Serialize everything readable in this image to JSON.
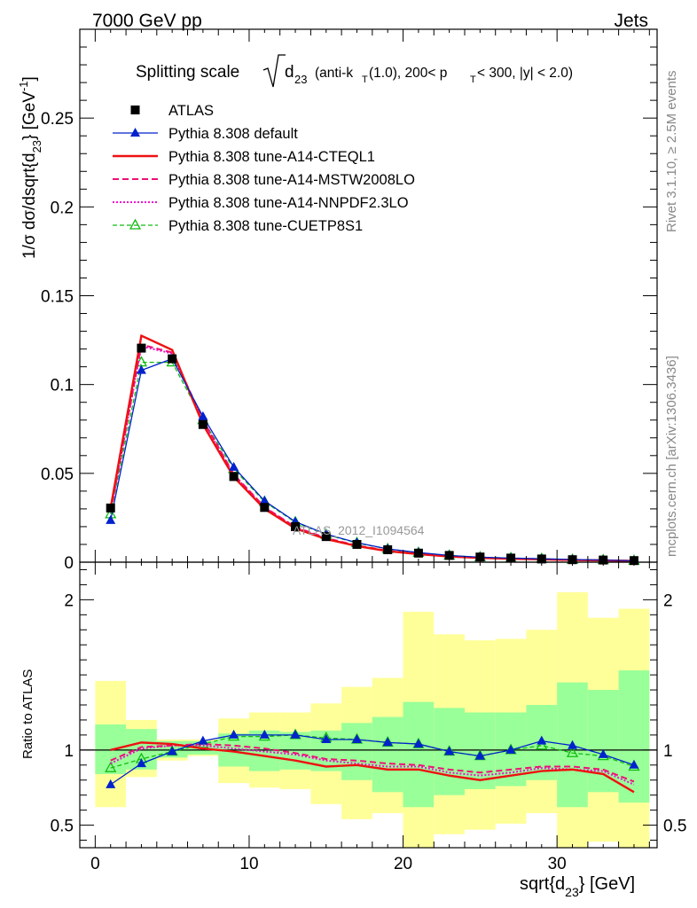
{
  "header": {
    "left": "7000 GeV pp",
    "right": "Jets"
  },
  "side_labels": {
    "rivet": "Rivet 3.1.10, ≥ 2.5M events",
    "mcplots": "mcplots.cern.ch [arXiv:1306.3436]"
  },
  "watermark": "ATLAS_2012_I1094564",
  "title": {
    "prefix": "Splitting scale",
    "radicand": "d",
    "radicand_sub": "23",
    "detail": "(anti-k",
    "detail_sub1": "T",
    "detail_mid": "(1.0), 200< p",
    "detail_sub2": "T",
    "detail_end": " < 300, |y| < 2.0)"
  },
  "y_main": {
    "label": "1/σ dσ/dsqrt{d",
    "label_sub": "23",
    "label_end": "} [GeV",
    "label_sup": "-1",
    "label_close": "]"
  },
  "y_ratio": {
    "label": "Ratio to ATLAS"
  },
  "x_axis": {
    "label": "sqrt{d",
    "label_sub": "23",
    "label_end": "} [GeV]"
  },
  "chart_data": [
    {
      "type": "line",
      "panel": "main",
      "xlim": [
        -1,
        36.5
      ],
      "ylim": [
        0,
        0.3
      ],
      "x_ticks": [
        0,
        10,
        20,
        30
      ],
      "y_ticks": [
        "0",
        "0.05",
        "0.1",
        "0.15",
        "0.2",
        "0.25"
      ],
      "y_tick_values": [
        0,
        0.05,
        0.1,
        0.15,
        0.2,
        0.25
      ],
      "x": [
        1,
        3,
        5,
        7,
        9,
        11,
        13,
        15,
        17,
        19,
        21,
        23,
        25,
        27,
        29,
        31,
        33,
        35
      ],
      "legend_position": "top-left",
      "series": [
        {
          "name": "ATLAS",
          "color": "#000000",
          "marker": "square",
          "values": [
            0.0305,
            0.1205,
            0.1145,
            0.0775,
            0.0482,
            0.0308,
            0.02,
            0.0144,
            0.01,
            0.007,
            0.0051,
            0.0038,
            0.0029,
            0.0023,
            0.0018,
            0.0014,
            0.0012,
            0.0009
          ]
        },
        {
          "name": "Pythia 8.308 default",
          "color": "#0022cc",
          "marker": "triangle",
          "values": [
            0.0235,
            0.108,
            0.1145,
            0.082,
            0.0535,
            0.0345,
            0.0228,
            0.0158,
            0.011,
            0.0075,
            0.0054,
            0.0038,
            0.0028,
            0.0023,
            0.0019,
            0.0015,
            0.0012,
            0.0008
          ]
        },
        {
          "name": "Pythia 8.308 tune-A14-CTEQL1",
          "color": "#ee1111",
          "dash": "",
          "values": [
            0.0305,
            0.1275,
            0.1195,
            0.0775,
            0.048,
            0.03,
            0.019,
            0.013,
            0.0091,
            0.0062,
            0.0045,
            0.0032,
            0.0024,
            0.0019,
            0.0016,
            0.0012,
            0.001,
            0.0007
          ]
        },
        {
          "name": "Pythia 8.308 tune-A14-MSTW2008LO",
          "color": "#ee1177",
          "dash": "7,4",
          "values": [
            0.0285,
            0.1225,
            0.118,
            0.08,
            0.0495,
            0.031,
            0.0198,
            0.0136,
            0.0094,
            0.0065,
            0.0046,
            0.0033,
            0.0025,
            0.002,
            0.0016,
            0.0013,
            0.0011,
            0.0007
          ]
        },
        {
          "name": "Pythia 8.308 tune-A14-NNPDF2.3LO",
          "color": "#ee11cc",
          "dash": "2,2",
          "values": [
            0.028,
            0.1215,
            0.1175,
            0.0795,
            0.049,
            0.0308,
            0.0195,
            0.0133,
            0.0092,
            0.0063,
            0.0045,
            0.0032,
            0.0024,
            0.0019,
            0.0016,
            0.0012,
            0.001,
            0.0007
          ]
        },
        {
          "name": "Pythia 8.308 tune-CUETP8S1",
          "color": "#11bb11",
          "marker": "open-triangle",
          "dash": "5,3",
          "values": [
            0.027,
            0.1125,
            0.1125,
            0.08,
            0.0525,
            0.034,
            0.0225,
            0.0155,
            0.0108,
            0.0074,
            0.0053,
            0.0037,
            0.0028,
            0.0023,
            0.0019,
            0.0014,
            0.0012,
            0.0008
          ]
        }
      ]
    },
    {
      "type": "line",
      "panel": "ratio",
      "xlim": [
        -1,
        36.5
      ],
      "ylim": [
        0.35,
        2.25
      ],
      "y_ticks": [
        "0.5",
        "1",
        "2"
      ],
      "y_tick_values": [
        0.5,
        1,
        2
      ],
      "bin_edges": [
        0,
        2,
        4,
        6,
        8,
        10,
        12,
        14,
        16,
        18,
        20,
        22,
        24,
        26,
        28,
        30,
        32,
        34,
        36
      ],
      "band_stat": {
        "color": "#99ff99",
        "low": [
          0.84,
          0.87,
          0.95,
          0.97,
          0.89,
          0.86,
          0.87,
          0.86,
          0.8,
          0.72,
          0.62,
          0.7,
          0.74,
          0.76,
          0.8,
          0.62,
          0.72,
          0.65
        ],
        "high": [
          1.17,
          1.14,
          1.06,
          1.06,
          1.11,
          1.13,
          1.12,
          1.13,
          1.18,
          1.22,
          1.32,
          1.28,
          1.25,
          1.25,
          1.3,
          1.45,
          1.4,
          1.53
        ]
      },
      "band_syst": {
        "color": "#ffff99",
        "low": [
          0.62,
          0.82,
          0.93,
          0.96,
          0.78,
          0.75,
          0.74,
          0.64,
          0.54,
          0.58,
          0.23,
          0.44,
          0.47,
          0.51,
          0.58,
          0.3,
          0.39,
          0.35
        ],
        "high": [
          1.46,
          1.2,
          1.07,
          1.07,
          1.21,
          1.25,
          1.25,
          1.31,
          1.42,
          1.48,
          1.92,
          1.77,
          1.73,
          1.74,
          1.8,
          2.05,
          1.88,
          1.94
        ]
      },
      "x": [
        1,
        3,
        5,
        7,
        9,
        11,
        13,
        15,
        17,
        19,
        21,
        23,
        25,
        27,
        29,
        31,
        33,
        35
      ],
      "series": [
        {
          "name": "Pythia 8.308 default",
          "color": "#0022cc",
          "marker": "triangle",
          "values": [
            0.77,
            0.91,
            0.99,
            1.06,
            1.1,
            1.1,
            1.1,
            1.07,
            1.07,
            1.05,
            1.04,
            0.99,
            0.96,
            1.0,
            1.06,
            1.03,
            0.97,
            0.9
          ]
        },
        {
          "name": "Pythia 8.308 tune-A14-CTEQL1",
          "color": "#ee1111",
          "dash": "",
          "values": [
            1.0,
            1.05,
            1.04,
            1.01,
            0.99,
            0.96,
            0.93,
            0.89,
            0.9,
            0.87,
            0.87,
            0.83,
            0.8,
            0.83,
            0.86,
            0.87,
            0.84,
            0.72
          ]
        },
        {
          "name": "Pythia 8.308 tune-A14-MSTW2008LO",
          "color": "#ee1177",
          "dash": "7,4",
          "values": [
            0.93,
            1.02,
            1.03,
            1.04,
            1.03,
            1.01,
            0.98,
            0.94,
            0.93,
            0.91,
            0.9,
            0.87,
            0.85,
            0.87,
            0.89,
            0.89,
            0.87,
            0.79
          ]
        },
        {
          "name": "Pythia 8.308 tune-A14-NNPDF2.3LO",
          "color": "#ee11cc",
          "dash": "2,2",
          "values": [
            0.91,
            1.01,
            1.03,
            1.03,
            1.01,
            0.99,
            0.97,
            0.93,
            0.91,
            0.89,
            0.89,
            0.85,
            0.83,
            0.85,
            0.88,
            0.87,
            0.86,
            0.77
          ]
        },
        {
          "name": "Pythia 8.308 tune-CUETP8S1",
          "color": "#11bb11",
          "marker": "open-triangle",
          "dash": "5,3",
          "values": [
            0.88,
            0.94,
            0.99,
            1.04,
            1.09,
            1.09,
            1.1,
            1.08,
            1.07,
            1.05,
            1.04,
            0.99,
            0.96,
            1.0,
            1.03,
            0.98,
            0.96,
            0.89
          ]
        }
      ]
    }
  ]
}
